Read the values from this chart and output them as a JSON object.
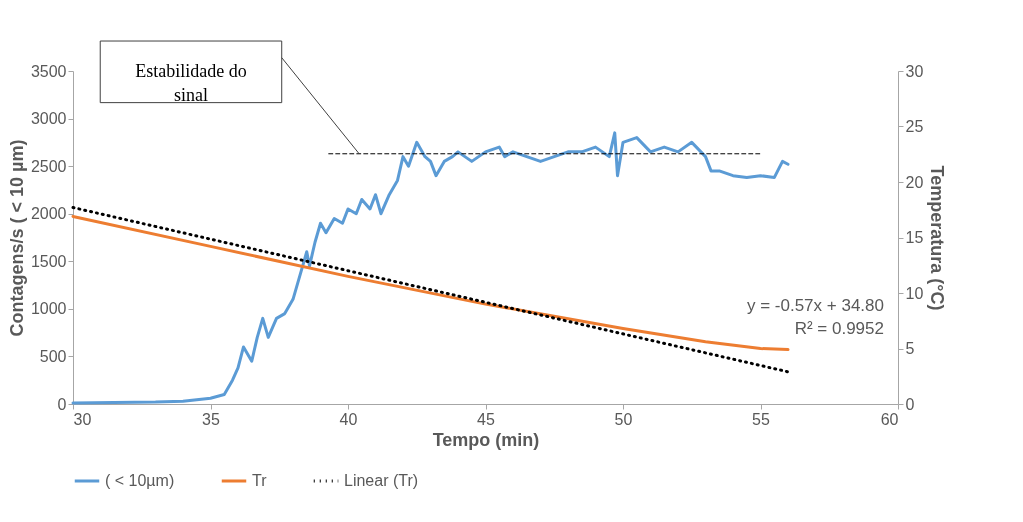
{
  "chart_data": {
    "type": "line",
    "xlabel": "Tempo (min)",
    "ylabel": "Contagens/s ( < 10 µm)",
    "y2label": "Temperatura (°C)",
    "xlim": [
      30,
      60
    ],
    "xticks": [
      30,
      35,
      40,
      45,
      50,
      55,
      60
    ],
    "ylim": [
      0,
      3500
    ],
    "yticks": [
      0,
      500,
      1000,
      1500,
      2000,
      2500,
      3000,
      3500
    ],
    "y2lim": [
      0,
      30
    ],
    "y2ticks": [
      0,
      5,
      10,
      15,
      20,
      25,
      30
    ],
    "grid": false,
    "legend": "bottom",
    "marker": "none",
    "annotations": [
      "Estabilidade do sinal",
      "y = -0.57x + 34.80",
      "R² = 0.9952"
    ],
    "series": [
      {
        "name": "( < 10µm)",
        "color": "#5b9bd5",
        "line_style": "solid",
        "x": [
          30,
          33,
          34,
          35,
          35.5,
          35.8,
          36,
          36.2,
          36.5,
          36.7,
          36.9,
          37.1,
          37.4,
          37.7,
          38,
          38.3,
          38.5,
          38.6,
          38.8,
          39,
          39.2,
          39.5,
          39.8,
          40,
          40.3,
          40.5,
          40.8,
          41,
          41.2,
          41.5,
          41.8,
          42,
          42.2,
          42.5,
          42.8,
          43,
          43.2,
          43.5,
          43.8,
          44,
          44.5,
          45,
          45.5,
          45.7,
          46,
          46.5,
          47,
          47.5,
          48,
          48.5,
          49,
          49.5,
          49.7,
          49.8,
          50,
          50.5,
          51,
          51.5,
          52,
          52.5,
          53,
          53.2,
          53.5,
          54,
          54.5,
          55,
          55.5,
          55.8,
          56
        ],
        "values": [
          10,
          20,
          30,
          60,
          100,
          250,
          380,
          600,
          450,
          700,
          900,
          700,
          900,
          950,
          1100,
          1400,
          1600,
          1450,
          1700,
          1900,
          1800,
          1950,
          1900,
          2050,
          2000,
          2150,
          2050,
          2200,
          2000,
          2200,
          2350,
          2600,
          2500,
          2750,
          2600,
          2550,
          2400,
          2550,
          2600,
          2650,
          2550,
          2650,
          2700,
          2600,
          2650,
          2600,
          2550,
          2600,
          2650,
          2650,
          2700,
          2600,
          2850,
          2400,
          2750,
          2800,
          2650,
          2700,
          2650,
          2750,
          2600,
          2450,
          2450,
          2400,
          2380,
          2400,
          2380,
          2550,
          2520
        ]
      },
      {
        "name": "Tr",
        "color": "#ed7d31",
        "line_style": "solid",
        "axis": "y2",
        "x": [
          30,
          35,
          40,
          45,
          50,
          53,
          55,
          56
        ],
        "values": [
          16.9,
          14.2,
          11.5,
          9.0,
          6.8,
          5.6,
          5.0,
          4.9
        ]
      },
      {
        "name": "Linear (Tr)",
        "color": "#000000",
        "line_style": "dotted",
        "axis": "y2",
        "x": [
          30,
          56
        ],
        "values": [
          17.7,
          2.9
        ]
      },
      {
        "color": "#000000",
        "line_style": "dashed",
        "x": [
          39.3,
          55
        ],
        "values": [
          2630,
          2630
        ]
      }
    ]
  }
}
